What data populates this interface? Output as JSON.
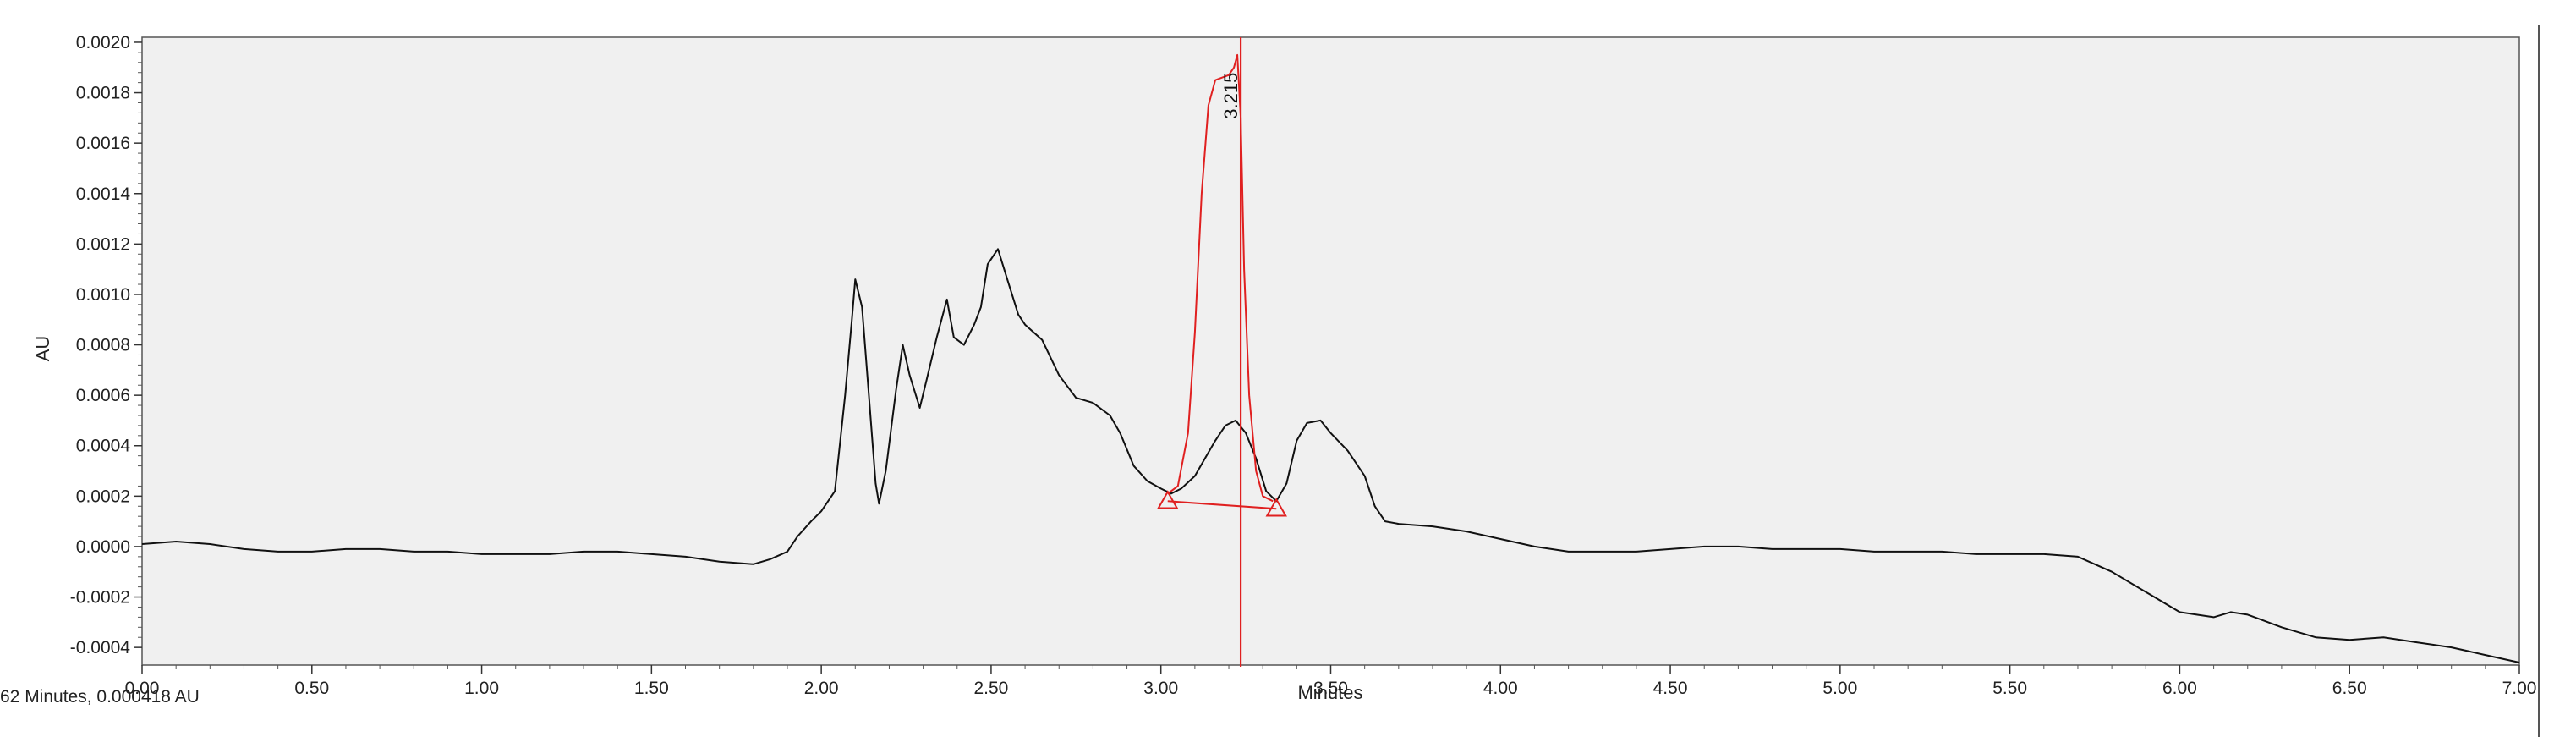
{
  "status_bar": {
    "cursor_readout": "62 Minutes, 0.000418 AU"
  },
  "chart_data": {
    "type": "line",
    "xlabel": "Minutes",
    "ylabel": "AU",
    "xlim": [
      0.0,
      7.0
    ],
    "ylim": [
      -0.00047,
      0.00202
    ],
    "x_ticks": [
      0.0,
      0.5,
      1.0,
      1.5,
      2.0,
      2.5,
      3.0,
      3.5,
      4.0,
      4.5,
      5.0,
      5.5,
      6.0,
      6.5,
      7.0
    ],
    "x_tick_labels": [
      "0.00",
      "0.50",
      "1.00",
      "1.50",
      "2.00",
      "2.50",
      "3.00",
      "3.50",
      "4.00",
      "4.50",
      "5.00",
      "5.50",
      "6.00",
      "6.50",
      "7.00"
    ],
    "y_ticks": [
      -0.0004,
      -0.0002,
      0.0,
      0.0002,
      0.0004,
      0.0006,
      0.0008,
      0.001,
      0.0012,
      0.0014,
      0.0016,
      0.0018,
      0.002
    ],
    "y_tick_labels": [
      "-0.0004",
      "-0.0002",
      "0.0000",
      "0.0002",
      "0.0004",
      "0.0006",
      "0.0008",
      "0.0010",
      "0.0012",
      "0.0014",
      "0.0016",
      "0.0018",
      "0.0020"
    ],
    "grid": false,
    "colors": {
      "trace": "#111111",
      "peak": "#e02020",
      "plot_bg": "#f0f0f0"
    },
    "series": [
      {
        "values": [
          [
            0.0,
            1e-05
          ],
          [
            0.1,
            2e-05
          ],
          [
            0.2,
            1e-05
          ],
          [
            0.3,
            -1e-05
          ],
          [
            0.4,
            -2e-05
          ],
          [
            0.5,
            -2e-05
          ],
          [
            0.6,
            -1e-05
          ],
          [
            0.7,
            -1e-05
          ],
          [
            0.8,
            -2e-05
          ],
          [
            0.9,
            -2e-05
          ],
          [
            1.0,
            -3e-05
          ],
          [
            1.1,
            -3e-05
          ],
          [
            1.2,
            -3e-05
          ],
          [
            1.3,
            -2e-05
          ],
          [
            1.4,
            -2e-05
          ],
          [
            1.5,
            -3e-05
          ],
          [
            1.6,
            -4e-05
          ],
          [
            1.7,
            -6e-05
          ],
          [
            1.8,
            -7e-05
          ],
          [
            1.85,
            -5e-05
          ],
          [
            1.9,
            -2e-05
          ],
          [
            1.93,
            4e-05
          ],
          [
            1.97,
            0.0001
          ],
          [
            2.0,
            0.00014
          ],
          [
            2.04,
            0.00022
          ],
          [
            2.07,
            0.0006
          ],
          [
            2.09,
            0.0009
          ],
          [
            2.1,
            0.00106
          ],
          [
            2.12,
            0.00095
          ],
          [
            2.14,
            0.0006
          ],
          [
            2.16,
            0.00025
          ],
          [
            2.17,
            0.00017
          ],
          [
            2.19,
            0.0003
          ],
          [
            2.22,
            0.00062
          ],
          [
            2.24,
            0.0008
          ],
          [
            2.26,
            0.00068
          ],
          [
            2.29,
            0.00055
          ],
          [
            2.31,
            0.00066
          ],
          [
            2.34,
            0.00083
          ],
          [
            2.37,
            0.00098
          ],
          [
            2.39,
            0.00083
          ],
          [
            2.42,
            0.0008
          ],
          [
            2.45,
            0.00088
          ],
          [
            2.47,
            0.00095
          ],
          [
            2.49,
            0.00112
          ],
          [
            2.52,
            0.00118
          ],
          [
            2.55,
            0.00105
          ],
          [
            2.58,
            0.00092
          ],
          [
            2.6,
            0.00088
          ],
          [
            2.65,
            0.00082
          ],
          [
            2.7,
            0.00068
          ],
          [
            2.75,
            0.00059
          ],
          [
            2.8,
            0.00057
          ],
          [
            2.85,
            0.00052
          ],
          [
            2.88,
            0.00045
          ],
          [
            2.92,
            0.00032
          ],
          [
            2.96,
            0.00026
          ],
          [
            3.0,
            0.00023
          ],
          [
            3.03,
            0.00021
          ],
          [
            3.06,
            0.00023
          ],
          [
            3.1,
            0.00028
          ],
          [
            3.13,
            0.00035
          ],
          [
            3.16,
            0.00042
          ],
          [
            3.19,
            0.00048
          ],
          [
            3.22,
            0.0005
          ],
          [
            3.25,
            0.00045
          ],
          [
            3.28,
            0.00035
          ],
          [
            3.31,
            0.00022
          ],
          [
            3.34,
            0.00018
          ],
          [
            3.37,
            0.00025
          ],
          [
            3.4,
            0.00042
          ],
          [
            3.43,
            0.00049
          ],
          [
            3.47,
            0.0005
          ],
          [
            3.5,
            0.00045
          ],
          [
            3.55,
            0.00038
          ],
          [
            3.6,
            0.00028
          ],
          [
            3.63,
            0.00016
          ],
          [
            3.66,
            0.0001
          ],
          [
            3.7,
            9e-05
          ],
          [
            3.8,
            8e-05
          ],
          [
            3.9,
            6e-05
          ],
          [
            4.0,
            3e-05
          ],
          [
            4.1,
            0.0
          ],
          [
            4.2,
            -2e-05
          ],
          [
            4.3,
            -2e-05
          ],
          [
            4.4,
            -2e-05
          ],
          [
            4.5,
            -1e-05
          ],
          [
            4.6,
            0.0
          ],
          [
            4.7,
            0.0
          ],
          [
            4.8,
            -1e-05
          ],
          [
            4.9,
            -1e-05
          ],
          [
            5.0,
            -1e-05
          ],
          [
            5.1,
            -2e-05
          ],
          [
            5.2,
            -2e-05
          ],
          [
            5.3,
            -2e-05
          ],
          [
            5.4,
            -3e-05
          ],
          [
            5.5,
            -3e-05
          ],
          [
            5.6,
            -3e-05
          ],
          [
            5.7,
            -4e-05
          ],
          [
            5.8,
            -0.0001
          ],
          [
            5.9,
            -0.00018
          ],
          [
            6.0,
            -0.00026
          ],
          [
            6.1,
            -0.00028
          ],
          [
            6.15,
            -0.00026
          ],
          [
            6.2,
            -0.00027
          ],
          [
            6.3,
            -0.00032
          ],
          [
            6.4,
            -0.00036
          ],
          [
            6.5,
            -0.00037
          ],
          [
            6.6,
            -0.00036
          ],
          [
            6.7,
            -0.00038
          ],
          [
            6.8,
            -0.0004
          ],
          [
            6.9,
            -0.00043
          ],
          [
            7.0,
            -0.00046
          ]
        ]
      },
      {
        "values": [
          [
            3.02,
            0.00021
          ],
          [
            3.05,
            0.00024
          ],
          [
            3.08,
            0.00045
          ],
          [
            3.1,
            0.00085
          ],
          [
            3.12,
            0.0014
          ],
          [
            3.14,
            0.00175
          ],
          [
            3.16,
            0.00185
          ],
          [
            3.18,
            0.00186
          ],
          [
            3.2,
            0.00187
          ],
          [
            3.215,
            0.0019
          ],
          [
            3.225,
            0.00195
          ],
          [
            3.235,
            0.0017
          ],
          [
            3.245,
            0.0011
          ],
          [
            3.26,
            0.0006
          ],
          [
            3.28,
            0.0003
          ],
          [
            3.3,
            0.0002
          ],
          [
            3.33,
            0.00018
          ]
        ]
      }
    ],
    "annotations": [
      {
        "type": "peak-label",
        "text": "3.215",
        "x": 3.215,
        "y": 0.00189
      },
      {
        "type": "baseline",
        "from": [
          3.02,
          0.00018
        ],
        "to": [
          3.34,
          0.00015
        ]
      },
      {
        "type": "marker",
        "shape": "triangle",
        "x": 3.02,
        "y": 0.00018
      },
      {
        "type": "marker",
        "shape": "triangle",
        "x": 3.34,
        "y": 0.00015
      },
      {
        "type": "cursor",
        "x": 3.235
      }
    ]
  }
}
